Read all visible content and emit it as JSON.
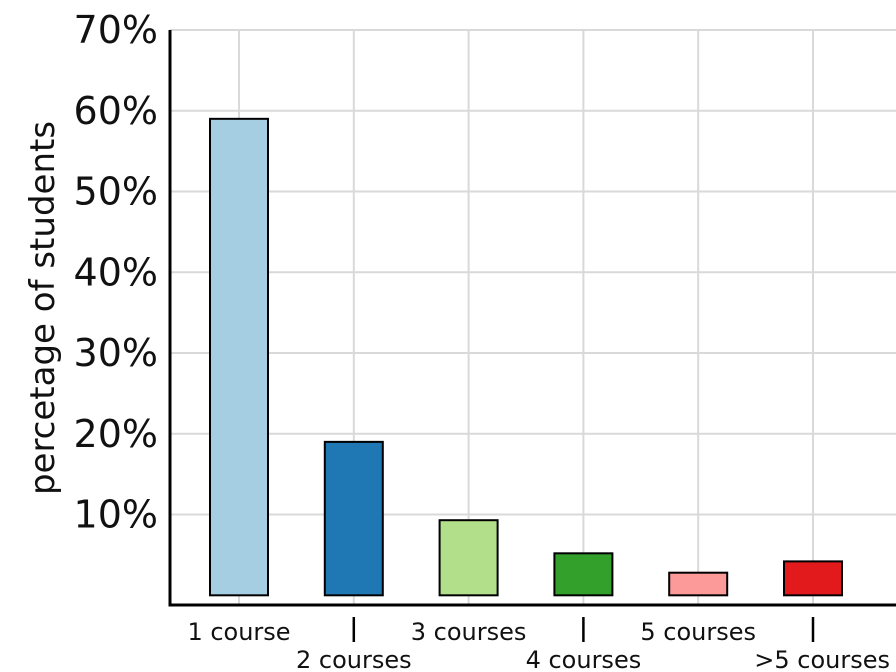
{
  "chart_data": {
    "type": "bar",
    "categories": [
      "1 course",
      "2 courses",
      "3 courses",
      "4 courses",
      "5 courses",
      ">5 courses"
    ],
    "values": [
      59,
      19,
      9.3,
      5.2,
      2.8,
      4.2
    ],
    "colors": [
      "#a6cee3",
      "#1f78b4",
      "#b2df8a",
      "#33a02c",
      "#fb9a99",
      "#e31a1c"
    ],
    "ylabel": "percetage of students",
    "xlabel": "",
    "ylim": [
      -1.2,
      70
    ],
    "yticks": [
      10,
      20,
      30,
      40,
      50,
      60,
      70
    ],
    "ytick_labels": [
      "10%",
      "20%",
      "30%",
      "40%",
      "50%",
      "60%",
      "70%"
    ],
    "grid": true,
    "legend": "none"
  }
}
